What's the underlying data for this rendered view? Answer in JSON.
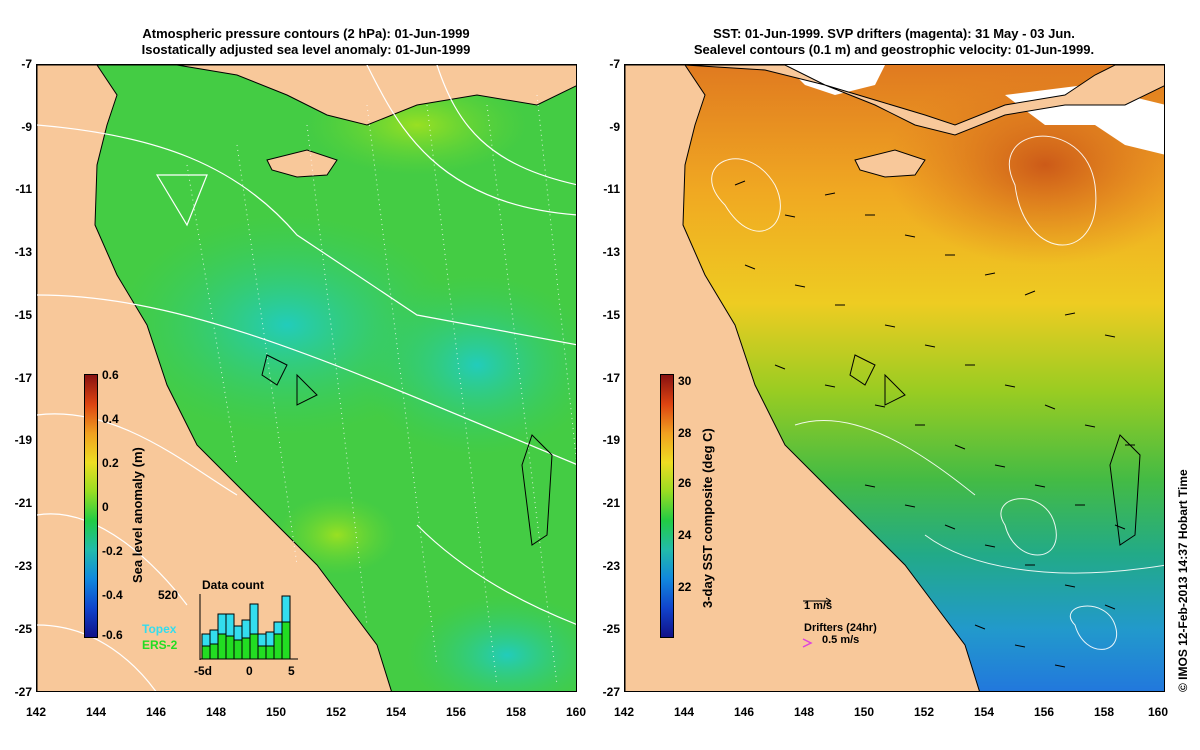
{
  "left_panel": {
    "title_line1": "Atmospheric pressure contours (2 hPa): 01-Jun-1999",
    "title_line2": "Isostatically adjusted sea level anomaly: 01-Jun-1999",
    "colorbar_label": "Sea level anomaly (m)",
    "colorbar_ticks": [
      "0.6",
      "0.4",
      "0.2",
      "0",
      "-0.2",
      "-0.4",
      "-0.6"
    ],
    "inset": {
      "title": "Data count",
      "max_label": "520",
      "legend_topex": "Topex",
      "legend_ers2": "ERS-2",
      "x_start": "-5d",
      "x_mid": "0",
      "x_end": "5",
      "topex_color": "#33ddee",
      "ers2_color": "#22dd22"
    }
  },
  "right_panel": {
    "title_line1": "SST: 01-Jun-1999. SVP drifters (magenta): 31 May - 03 Jun.",
    "title_line2": "Sealevel contours (0.1 m) and geostrophic velocity: 01-Jun-1999.",
    "colorbar_label": "3-day SST composite (deg C)",
    "colorbar_ticks": [
      "30",
      "28",
      "26",
      "24",
      "22"
    ],
    "velocity_scale": "1 m/s",
    "drifters_label": "Drifters (24hr)",
    "drifters_scale": "0.5 m/s"
  },
  "y_axis_ticks": [
    "-7",
    "-9",
    "-11",
    "-13",
    "-15",
    "-17",
    "-19",
    "-21",
    "-23",
    "-25",
    "-27"
  ],
  "x_axis_ticks": [
    "142",
    "144",
    "146",
    "148",
    "150",
    "152",
    "154",
    "156",
    "158",
    "160"
  ],
  "credit": "© IMOS 12-Feb-2013 14:37 Hobart Time",
  "colors": {
    "land": "#f8c89a",
    "sla_ocean": "#33cc44",
    "sla_low": "#22ccaa",
    "sst_warm": "#f0a020",
    "sst_mid": "#66cc33",
    "sst_cool": "#3399dd"
  }
}
